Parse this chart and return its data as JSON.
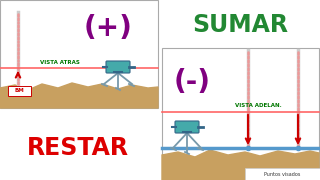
{
  "bg_color": "#ffffff",
  "ground_color": "#c8a060",
  "horizon_line_color": "#ff6666",
  "water_line_color": "#5599cc",
  "tripod_color": "#7799aa",
  "level_color": "#44aaaa",
  "plus_sign": "(+)",
  "minus_sign": "(-)",
  "sumar_text": "SUMAR",
  "restar_text": "RESTAR",
  "vista_atras": "VISTA ATRAS",
  "vista_adelante": "VISTA ADELAN.",
  "puntos_visados": "Puntos visados",
  "bm_text": "BM",
  "plus_color": "#800080",
  "minus_color": "#800080",
  "sumar_color": "#228833",
  "restar_color": "#dd0000",
  "label_color": "#007700",
  "arrow_color": "#cc0000",
  "panel_edge": "#aaaaaa",
  "staff_base_color": "#cccccc",
  "staff_dash_color": "#ee9999"
}
